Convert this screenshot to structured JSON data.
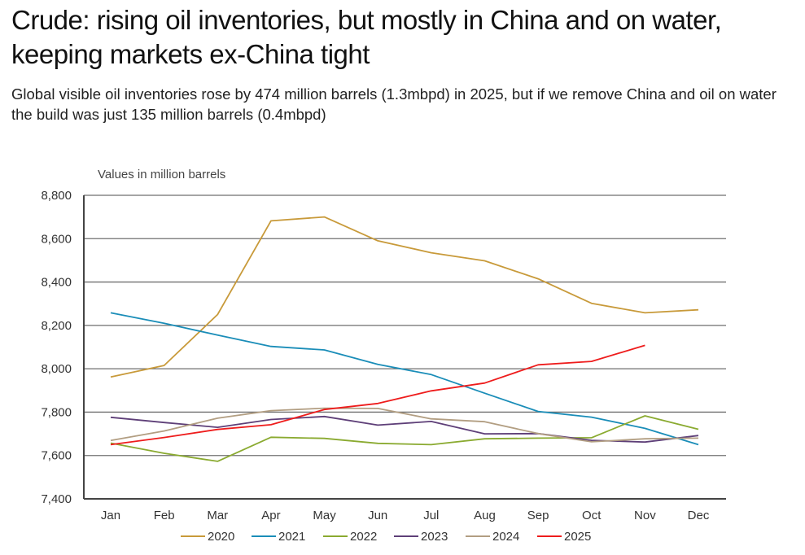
{
  "header": {
    "title": "Crude: rising oil inventories, but mostly in China and on water, keeping markets ex-China tight",
    "subtitle": "Global visible oil inventories rose by 474 million barrels (1.3mbpd) in 2025, but if we remove China and oil on water the build was just 135 million barrels (0.4mbpd)"
  },
  "chart_data": {
    "type": "line",
    "title": "",
    "unit_label": "Values in million barrels",
    "xlabel": "",
    "ylabel": "",
    "categories": [
      "Jan",
      "Feb",
      "Mar",
      "Apr",
      "May",
      "Jun",
      "Jul",
      "Aug",
      "Sep",
      "Oct",
      "Nov",
      "Dec"
    ],
    "ylim": [
      7400,
      8800
    ],
    "yticks": [
      7400,
      7600,
      7800,
      8000,
      8200,
      8400,
      8600,
      8800
    ],
    "ytick_labels": [
      "7,400",
      "7,600",
      "7,800",
      "8,000",
      "8,200",
      "8,400",
      "8,600",
      "8,800"
    ],
    "grid": true,
    "legend_position": "bottom",
    "series": [
      {
        "name": "2020",
        "color": "#C89A3A",
        "values": [
          7962,
          8015,
          8250,
          8682,
          8700,
          8590,
          8535,
          8498,
          8415,
          8302,
          8258,
          8272
        ]
      },
      {
        "name": "2021",
        "color": "#1A8DB8",
        "values": [
          8258,
          8210,
          8155,
          8103,
          8087,
          8020,
          7973,
          7887,
          7803,
          7777,
          7725,
          7650
        ]
      },
      {
        "name": "2022",
        "color": "#8AAA30",
        "values": [
          7657,
          7610,
          7573,
          7684,
          7679,
          7656,
          7650,
          7677,
          7680,
          7682,
          7783,
          7721
        ]
      },
      {
        "name": "2023",
        "color": "#5E3F78",
        "values": [
          7776,
          7752,
          7730,
          7766,
          7780,
          7740,
          7757,
          7700,
          7701,
          7670,
          7662,
          7692
        ]
      },
      {
        "name": "2024",
        "color": "#B29E82",
        "values": [
          7669,
          7713,
          7772,
          7807,
          7818,
          7817,
          7769,
          7756,
          7701,
          7663,
          7677,
          7680
        ]
      },
      {
        "name": "2025",
        "color": "#EE1C1C",
        "values": [
          7650,
          7683,
          7720,
          7742,
          7812,
          7840,
          7898,
          7934,
          8018,
          8034,
          8108,
          null
        ]
      }
    ]
  }
}
